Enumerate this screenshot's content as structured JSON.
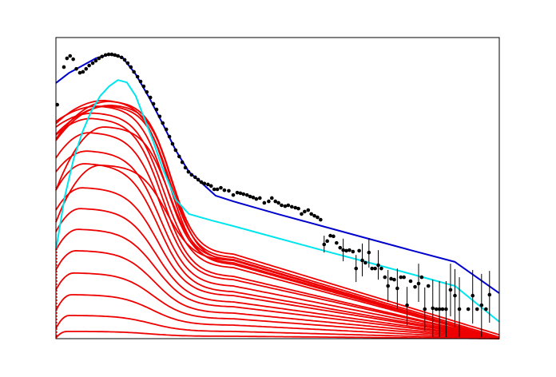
{
  "chart_data": {
    "type": "line",
    "title": "",
    "xlabel": "",
    "ylabel": "",
    "xlim": [
      0,
      100
    ],
    "ylim": [
      0,
      100
    ],
    "grid": false,
    "legend": "none",
    "colors": {
      "data_points": "#000000",
      "total_fit": "#0000cc",
      "component_fit": "#00e5ee",
      "sub_components": "#ee0000",
      "frame": "#000000"
    },
    "scatter_points": [
      {
        "x": 0.3,
        "y": 77.7
      },
      {
        "x": 1.8,
        "y": 90.2
      },
      {
        "x": 2.5,
        "y": 93.1
      },
      {
        "x": 3.2,
        "y": 93.9
      },
      {
        "x": 3.9,
        "y": 92.8
      },
      {
        "x": 4.6,
        "y": 89.6
      },
      {
        "x": 5.4,
        "y": 88.3
      },
      {
        "x": 6.1,
        "y": 88.6
      },
      {
        "x": 6.8,
        "y": 89.6
      },
      {
        "x": 7.5,
        "y": 90.7
      },
      {
        "x": 8.3,
        "y": 91.5
      },
      {
        "x": 9.0,
        "y": 92.3
      },
      {
        "x": 9.7,
        "y": 93.1
      },
      {
        "x": 10.4,
        "y": 93.7
      },
      {
        "x": 11.2,
        "y": 94.2
      },
      {
        "x": 11.9,
        "y": 94.4
      },
      {
        "x": 12.6,
        "y": 94.4
      },
      {
        "x": 13.3,
        "y": 94.2
      },
      {
        "x": 14.0,
        "y": 93.9
      },
      {
        "x": 14.8,
        "y": 93.4
      },
      {
        "x": 15.5,
        "y": 92.6
      },
      {
        "x": 16.2,
        "y": 91.5
      },
      {
        "x": 16.9,
        "y": 90.2
      },
      {
        "x": 17.6,
        "y": 88.6
      },
      {
        "x": 18.4,
        "y": 87.0
      },
      {
        "x": 19.1,
        "y": 85.4
      },
      {
        "x": 19.8,
        "y": 83.8
      },
      {
        "x": 20.5,
        "y": 81.9
      },
      {
        "x": 21.3,
        "y": 80.1
      },
      {
        "x": 22.0,
        "y": 78.0
      },
      {
        "x": 22.7,
        "y": 76.1
      },
      {
        "x": 23.4,
        "y": 73.8
      },
      {
        "x": 24.1,
        "y": 71.6
      },
      {
        "x": 24.9,
        "y": 69.5
      },
      {
        "x": 25.6,
        "y": 67.1
      },
      {
        "x": 26.3,
        "y": 64.7
      },
      {
        "x": 27.0,
        "y": 62.6
      },
      {
        "x": 27.8,
        "y": 60.5
      },
      {
        "x": 28.5,
        "y": 58.6
      },
      {
        "x": 29.2,
        "y": 56.8
      },
      {
        "x": 29.9,
        "y": 55.4
      },
      {
        "x": 30.6,
        "y": 54.4
      },
      {
        "x": 31.4,
        "y": 53.6
      },
      {
        "x": 32.1,
        "y": 52.8
      },
      {
        "x": 32.8,
        "y": 52.0
      },
      {
        "x": 33.5,
        "y": 51.5
      },
      {
        "x": 34.3,
        "y": 51.2
      },
      {
        "x": 35.0,
        "y": 50.7
      },
      {
        "x": 35.7,
        "y": 49.6
      },
      {
        "x": 36.4,
        "y": 49.6
      },
      {
        "x": 37.2,
        "y": 50.1
      },
      {
        "x": 38.0,
        "y": 49.3
      },
      {
        "x": 39.0,
        "y": 49.1
      },
      {
        "x": 40.0,
        "y": 47.7
      },
      {
        "x": 40.9,
        "y": 48.5
      },
      {
        "x": 41.6,
        "y": 48.3
      },
      {
        "x": 42.3,
        "y": 48.0
      },
      {
        "x": 43.1,
        "y": 47.7
      },
      {
        "x": 43.8,
        "y": 47.2
      },
      {
        "x": 44.5,
        "y": 46.9
      },
      {
        "x": 45.2,
        "y": 46.4
      },
      {
        "x": 46.0,
        "y": 46.7
      },
      {
        "x": 47.0,
        "y": 45.1
      },
      {
        "x": 48.0,
        "y": 45.6
      },
      {
        "x": 48.7,
        "y": 46.7
      },
      {
        "x": 49.5,
        "y": 45.6
      },
      {
        "x": 50.2,
        "y": 45.1
      },
      {
        "x": 50.9,
        "y": 44.3
      },
      {
        "x": 51.7,
        "y": 44.0
      },
      {
        "x": 52.4,
        "y": 44.3
      },
      {
        "x": 53.2,
        "y": 43.8
      },
      {
        "x": 54.0,
        "y": 43.5
      },
      {
        "x": 54.7,
        "y": 43.2
      },
      {
        "x": 55.4,
        "y": 41.4
      },
      {
        "x": 56.1,
        "y": 42.2
      },
      {
        "x": 56.9,
        "y": 42.7
      },
      {
        "x": 57.6,
        "y": 41.4
      },
      {
        "x": 58.3,
        "y": 40.8
      },
      {
        "x": 59.0,
        "y": 40.3
      },
      {
        "x": 59.7,
        "y": 39.5
      },
      {
        "x": 60.5,
        "y": 31.3
      },
      {
        "x": 61.2,
        "y": 32.4
      },
      {
        "x": 61.9,
        "y": 34.2
      },
      {
        "x": 62.6,
        "y": 34.0
      },
      {
        "x": 63.3,
        "y": 31.8
      },
      {
        "x": 64.1,
        "y": 30.2
      },
      {
        "x": 64.8,
        "y": 29.4
      },
      {
        "x": 65.5,
        "y": 29.2
      },
      {
        "x": 66.2,
        "y": 29.4
      },
      {
        "x": 67.0,
        "y": 28.9
      },
      {
        "x": 67.7,
        "y": 23.3
      },
      {
        "x": 68.4,
        "y": 29.2
      },
      {
        "x": 69.1,
        "y": 26.0
      },
      {
        "x": 69.8,
        "y": 25.2
      },
      {
        "x": 70.6,
        "y": 28.6
      },
      {
        "x": 71.3,
        "y": 23.3
      },
      {
        "x": 72.0,
        "y": 23.3
      },
      {
        "x": 72.7,
        "y": 24.4
      },
      {
        "x": 73.4,
        "y": 23.3
      },
      {
        "x": 74.2,
        "y": 20.4
      },
      {
        "x": 74.9,
        "y": 17.5
      },
      {
        "x": 75.6,
        "y": 19.9
      },
      {
        "x": 76.3,
        "y": 19.6
      },
      {
        "x": 77.0,
        "y": 16.7
      },
      {
        "x": 77.8,
        "y": 20.4
      },
      {
        "x": 78.5,
        "y": 20.4
      },
      {
        "x": 79.2,
        "y": 11.1
      },
      {
        "x": 80.0,
        "y": 19.1
      },
      {
        "x": 81.0,
        "y": 17.2
      },
      {
        "x": 81.8,
        "y": 18.3
      },
      {
        "x": 82.5,
        "y": 20.4
      },
      {
        "x": 83.2,
        "y": 9.8
      },
      {
        "x": 84.0,
        "y": 17.5
      },
      {
        "x": 85.0,
        "y": 10.1
      },
      {
        "x": 85.8,
        "y": 9.8
      },
      {
        "x": 86.5,
        "y": 9.8
      },
      {
        "x": 87.2,
        "y": 9.8
      },
      {
        "x": 88.0,
        "y": 9.8
      },
      {
        "x": 89.0,
        "y": 16.2
      },
      {
        "x": 90.0,
        "y": 14.3
      },
      {
        "x": 91.0,
        "y": 9.8
      },
      {
        "x": 93.0,
        "y": 9.8
      },
      {
        "x": 94.0,
        "y": 14.3
      },
      {
        "x": 95.0,
        "y": 9.8
      },
      {
        "x": 96.0,
        "y": 11.1
      },
      {
        "x": 97.0,
        "y": 9.8
      },
      {
        "x": 97.8,
        "y": 14.6
      }
    ],
    "error_bars": [
      {
        "x": 60.5,
        "lo": 28.6,
        "hi": 34.2
      },
      {
        "x": 64.8,
        "lo": 25.7,
        "hi": 33.2
      },
      {
        "x": 67.7,
        "lo": 18.8,
        "hi": 27.8
      },
      {
        "x": 69.1,
        "lo": 20.7,
        "hi": 31.6
      },
      {
        "x": 70.6,
        "lo": 23.6,
        "hi": 33.4
      },
      {
        "x": 72.7,
        "lo": 19.6,
        "hi": 29.4
      },
      {
        "x": 74.9,
        "lo": 12.2,
        "hi": 22.8
      },
      {
        "x": 77.0,
        "lo": 9.8,
        "hi": 23.3
      },
      {
        "x": 79.2,
        "lo": 4.5,
        "hi": 17.2
      },
      {
        "x": 81.8,
        "lo": 12.2,
        "hi": 24.9
      },
      {
        "x": 83.2,
        "lo": 2.7,
        "hi": 17.0
      },
      {
        "x": 85.0,
        "lo": 0.5,
        "hi": 19.6
      },
      {
        "x": 86.5,
        "lo": 0.5,
        "hi": 19.1
      },
      {
        "x": 88.0,
        "lo": 0.5,
        "hi": 19.1
      },
      {
        "x": 89.0,
        "lo": 7.4,
        "hi": 24.9
      },
      {
        "x": 90.0,
        "lo": 3.7,
        "hi": 23.1
      },
      {
        "x": 91.0,
        "lo": 0.5,
        "hi": 20.4
      },
      {
        "x": 94.0,
        "lo": 5.0,
        "hi": 22.8
      },
      {
        "x": 96.0,
        "lo": 0.5,
        "hi": 21.5
      },
      {
        "x": 97.8,
        "lo": 5.3,
        "hi": 22.5
      }
    ],
    "series": [
      {
        "role": "total_fit",
        "x": [
          0,
          3,
          6,
          9,
          12,
          15,
          18,
          21,
          24,
          27,
          30,
          33,
          36,
          40,
          50,
          60,
          70,
          80,
          90,
          100
        ],
        "y": [
          84.9,
          88.3,
          90.7,
          93.1,
          94.4,
          93.4,
          87.8,
          80.1,
          71.6,
          62.6,
          55.4,
          51.5,
          47.5,
          45.6,
          41.4,
          37.4,
          33.4,
          29.4,
          25.5,
          15.1
        ]
      },
      {
        "role": "component_fit",
        "x": [
          0,
          2,
          4,
          6,
          8,
          10,
          12,
          14,
          16,
          18,
          20,
          22,
          24,
          27,
          30,
          35,
          40,
          50,
          60,
          70,
          80,
          90,
          100
        ],
        "y": [
          29.4,
          47.2,
          59.7,
          68.7,
          75.6,
          80.6,
          83.8,
          85.9,
          85.1,
          80.6,
          72.9,
          65.3,
          56.8,
          46.2,
          41.4,
          39.3,
          37.4,
          33.4,
          29.4,
          25.5,
          21.5,
          17.5,
          5.6
        ]
      }
    ],
    "sub_component_params": [
      {
        "start": 38.7,
        "peak": 57.6,
        "mode": "hump",
        "tail_at_40": 26.0,
        "end": 0.0,
        "peak_x": 10.0
      },
      {
        "start": 49.3,
        "peak": 70.3,
        "mode": "hump",
        "tail_at_40": 26.3,
        "end": 0.0,
        "peak_x": 11.0
      },
      {
        "start": 65.8,
        "peak": 77.2,
        "mode": "hump",
        "tail_at_40": 27.0,
        "end": 0.5,
        "peak_x": 11.5
      },
      {
        "start": 66.3,
        "peak": 78.8,
        "mode": "hump",
        "tail_at_40": 28.1,
        "end": 1.3,
        "peak_x": 12.0
      },
      {
        "start": 67.9,
        "peak": 77.5,
        "mode": "hump",
        "tail_at_40": 26.0,
        "end": 0.0,
        "peak_x": 12.5
      },
      {
        "start": 71.4,
        "peak": 79.1,
        "mode": "hump",
        "tail_at_40": 24.7,
        "end": 0.0,
        "peak_x": 11.0
      },
      {
        "start": 72.1,
        "peak": 77.2,
        "mode": "hump",
        "tail_at_40": 25.2,
        "end": 0.0,
        "peak_x": 9.5
      },
      {
        "start": 70.3,
        "peak": 74.9,
        "mode": "hump",
        "tail_at_40": 23.6,
        "end": 0.0,
        "peak_x": 8.5
      },
      {
        "start": 67.6,
        "peak": 73.1,
        "mode": "hump",
        "tail_at_40": 20.7,
        "end": 0.0,
        "peak_x": 8.0
      },
      {
        "start": 60.0,
        "peak": 68.4,
        "mode": "hump",
        "tail_at_40": 19.6,
        "end": 0.0,
        "peak_x": 7.5
      },
      {
        "start": 55.4,
        "peak": 62.3,
        "mode": "hump",
        "tail_at_40": 17.5,
        "end": 0.0,
        "peak_x": 7.0
      },
      {
        "start": 49.3,
        "peak": 58.1,
        "mode": "hump",
        "tail_at_40": 15.6,
        "end": 0.0,
        "peak_x": 6.5
      },
      {
        "start": 42.7,
        "peak": 50.1,
        "mode": "hump",
        "tail_at_40": 14.3,
        "end": 0.0,
        "peak_x": 6.0
      },
      {
        "start": 35.5,
        "peak": 43.2,
        "mode": "hump",
        "tail_at_40": 12.2,
        "end": 0.0,
        "peak_x": 5.5
      },
      {
        "start": 29.4,
        "peak": 36.3,
        "mode": "hump",
        "tail_at_40": 10.6,
        "end": 0.0,
        "peak_x": 5.0
      },
      {
        "start": 22.8,
        "peak": 29.2,
        "mode": "hump",
        "tail_at_40": 8.5,
        "end": 0.0,
        "peak_x": 4.5
      },
      {
        "start": 16.2,
        "peak": 21.8,
        "mode": "hump",
        "tail_at_40": 6.6,
        "end": 0.0,
        "peak_x": 4.0
      },
      {
        "start": 9.3,
        "peak": 14.6,
        "mode": "hump",
        "tail_at_40": 4.5,
        "end": 0.0,
        "peak_x": 3.5
      },
      {
        "start": 3.4,
        "peak": 7.7,
        "mode": "hump",
        "tail_at_40": 2.4,
        "end": 0.0,
        "peak_x": 3.0
      },
      {
        "start": 0.3,
        "peak": 2.4,
        "mode": "hump",
        "tail_at_40": 0.8,
        "end": 0.0,
        "peak_x": 2.5
      }
    ]
  }
}
